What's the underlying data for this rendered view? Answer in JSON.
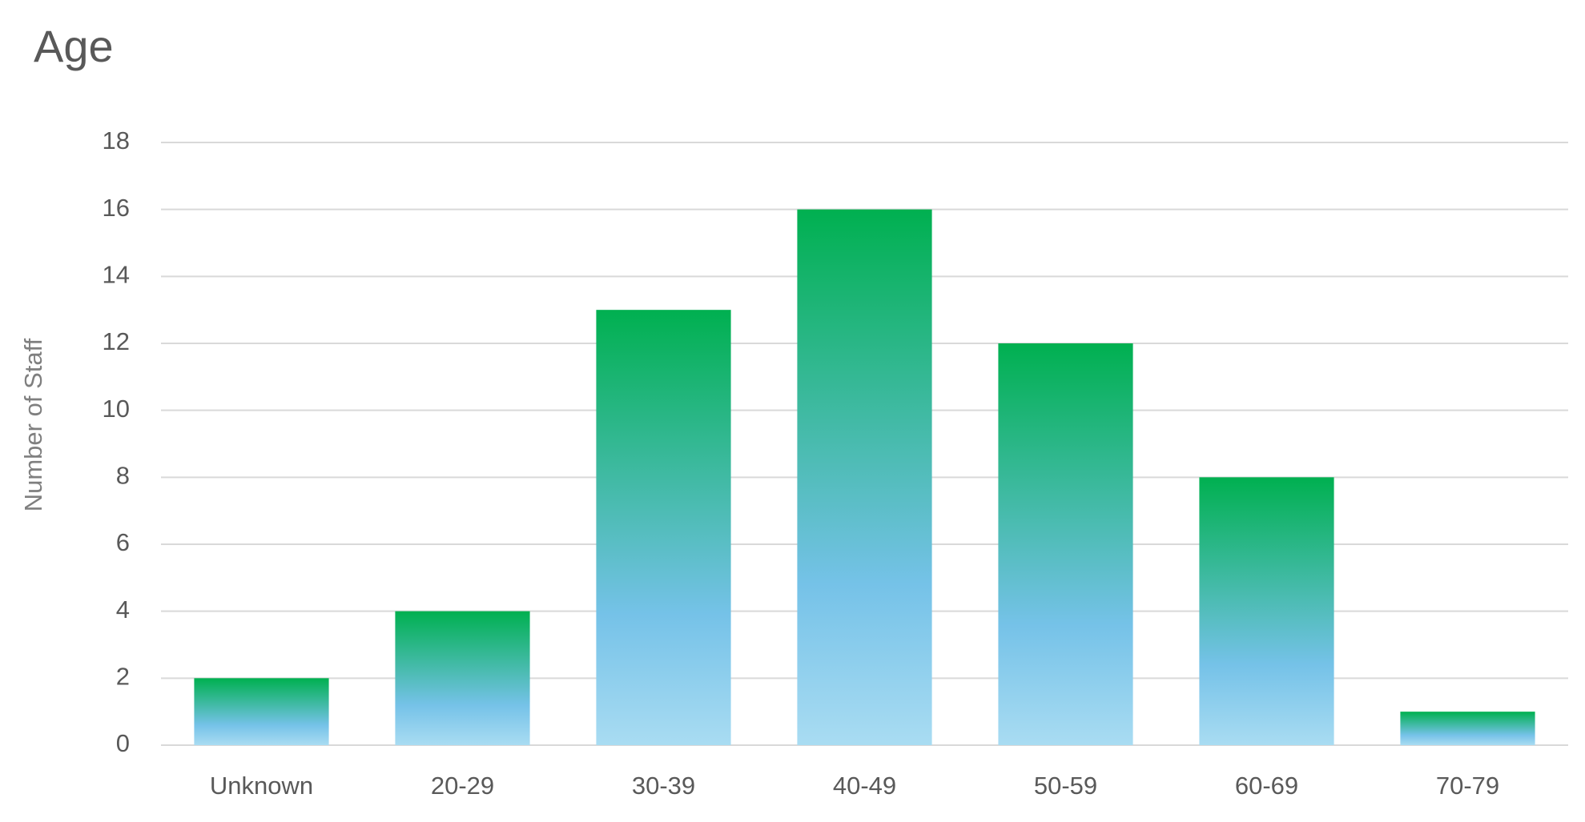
{
  "chart_data": {
    "type": "bar",
    "title": "Age",
    "y_label": "Number of Staff",
    "categories": [
      "Unknown",
      "20-29",
      "30-39",
      "40-49",
      "50-59",
      "60-69",
      "70-79"
    ],
    "values": [
      2,
      4,
      13,
      16,
      12,
      8,
      1
    ],
    "ylim": [
      0,
      18
    ],
    "yticks": [
      0,
      2,
      4,
      6,
      8,
      10,
      12,
      14,
      16,
      18
    ],
    "grid": true
  }
}
